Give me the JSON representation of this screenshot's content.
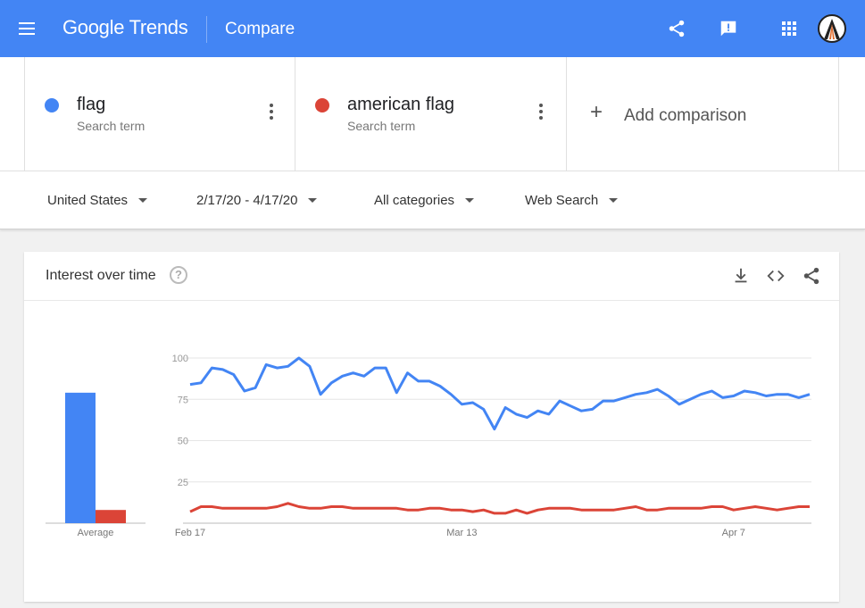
{
  "appbar": {
    "logo_google": "Google",
    "logo_trends": "Trends",
    "title": "Compare",
    "icons": [
      "menu-icon",
      "share-icon",
      "feedback-icon",
      "apps-icon",
      "avatar"
    ]
  },
  "terms": [
    {
      "name": "flag",
      "type": "Search term",
      "color": "#4385f4"
    },
    {
      "name": "american flag",
      "type": "Search term",
      "color": "#db4437"
    }
  ],
  "add_comparison": "Add comparison",
  "filters": {
    "region": "United States",
    "date_range": "2/17/20 - 4/17/20",
    "category": "All categories",
    "search_type": "Web Search"
  },
  "card": {
    "title": "Interest over time",
    "help": "?",
    "icons": [
      "download-icon",
      "embed-icon",
      "share-icon"
    ]
  },
  "chart_data": {
    "type": "line",
    "title": "Interest over time",
    "ylim": [
      0,
      100
    ],
    "y_ticks": [
      25,
      50,
      75,
      100
    ],
    "x_tick_labels": [
      {
        "label": "Feb 17",
        "index": 0
      },
      {
        "label": "Mar 13",
        "index": 25
      },
      {
        "label": "Apr 7",
        "index": 50
      }
    ],
    "averages": {
      "label": "Average",
      "values": [
        79,
        8
      ]
    },
    "series": [
      {
        "name": "flag",
        "color": "#4385f4",
        "values": [
          84,
          85,
          94,
          93,
          90,
          80,
          82,
          96,
          94,
          95,
          100,
          95,
          78,
          85,
          89,
          91,
          89,
          94,
          94,
          79,
          91,
          86,
          86,
          83,
          78,
          72,
          73,
          69,
          57,
          70,
          66,
          64,
          68,
          66,
          74,
          71,
          68,
          69,
          74,
          74,
          76,
          78,
          79,
          81,
          77,
          72,
          75,
          78,
          80,
          76,
          77,
          80,
          79,
          77,
          78,
          78,
          76,
          78
        ]
      },
      {
        "name": "american flag",
        "color": "#db4437",
        "values": [
          7,
          10,
          10,
          9,
          9,
          9,
          9,
          9,
          10,
          12,
          10,
          9,
          9,
          10,
          10,
          9,
          9,
          9,
          9,
          9,
          8,
          8,
          9,
          9,
          8,
          8,
          7,
          8,
          6,
          6,
          8,
          6,
          8,
          9,
          9,
          9,
          8,
          8,
          8,
          8,
          9,
          10,
          8,
          8,
          9,
          9,
          9,
          9,
          10,
          10,
          8,
          9,
          10,
          9,
          8,
          9,
          10,
          10
        ]
      }
    ]
  }
}
